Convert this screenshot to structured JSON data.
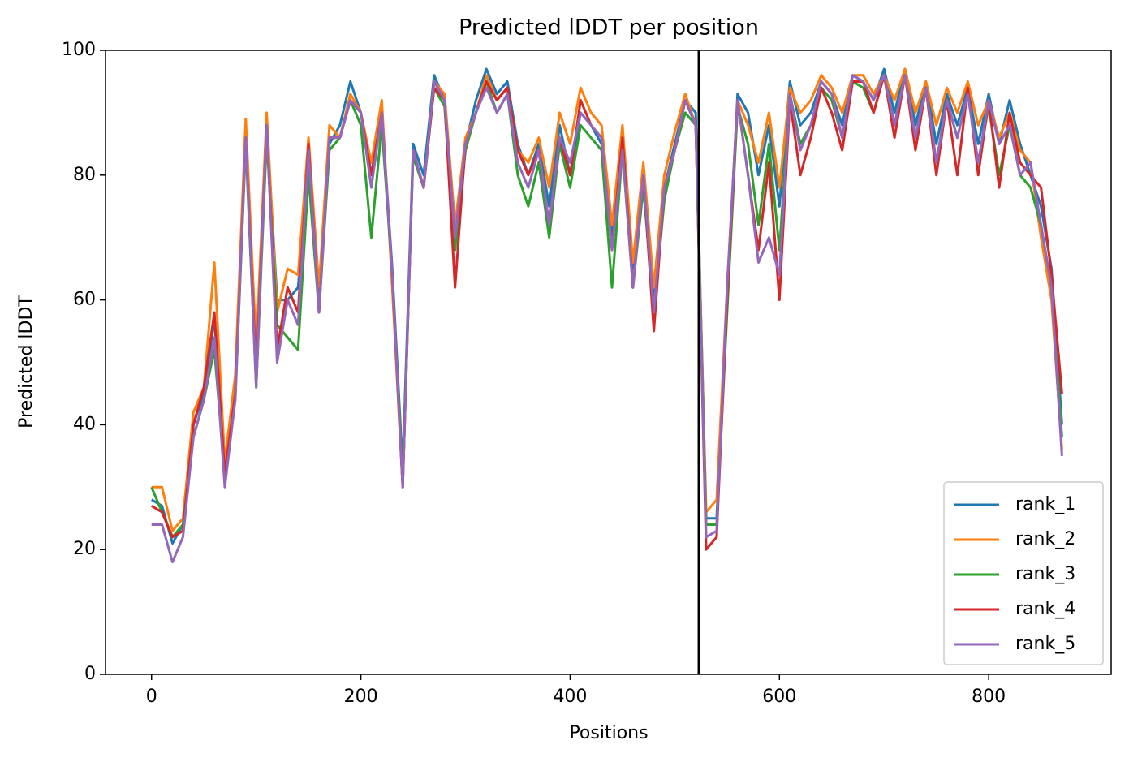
{
  "chart_data": {
    "type": "line",
    "title": "Predicted lDDT per position",
    "xlabel": "Positions",
    "ylabel": "Predicted lDDT",
    "x": [
      0,
      10,
      20,
      30,
      40,
      50,
      60,
      70,
      80,
      90,
      100,
      110,
      120,
      130,
      140,
      150,
      160,
      170,
      180,
      190,
      200,
      210,
      220,
      230,
      240,
      250,
      260,
      270,
      280,
      290,
      300,
      310,
      320,
      330,
      340,
      350,
      360,
      370,
      380,
      390,
      400,
      410,
      420,
      430,
      440,
      450,
      460,
      470,
      480,
      490,
      500,
      510,
      520,
      530,
      540,
      550,
      560,
      570,
      580,
      590,
      600,
      610,
      620,
      630,
      640,
      650,
      660,
      670,
      680,
      690,
      700,
      710,
      720,
      730,
      740,
      750,
      760,
      770,
      780,
      790,
      800,
      810,
      820,
      830,
      840,
      850,
      860,
      870
    ],
    "series": [
      {
        "name": "rank_1",
        "color": "#1f77b4",
        "values": [
          28,
          27,
          21,
          24,
          40,
          45,
          57,
          33,
          45,
          87,
          50,
          88,
          60,
          60,
          62,
          82,
          60,
          85,
          88,
          95,
          90,
          80,
          90,
          65,
          33,
          85,
          80,
          96,
          92,
          70,
          85,
          92,
          97,
          93,
          95,
          85,
          80,
          85,
          75,
          88,
          80,
          90,
          88,
          85,
          70,
          85,
          65,
          80,
          60,
          78,
          85,
          92,
          90,
          25,
          25,
          60,
          93,
          90,
          80,
          88,
          75,
          95,
          88,
          90,
          95,
          93,
          88,
          96,
          95,
          92,
          97,
          90,
          97,
          88,
          95,
          85,
          93,
          88,
          94,
          85,
          93,
          85,
          92,
          85,
          80,
          75,
          65,
          40
        ]
      },
      {
        "name": "rank_2",
        "color": "#ff7f0e",
        "values": [
          30,
          30,
          23,
          25,
          42,
          46,
          66,
          34,
          48,
          89,
          52,
          90,
          58,
          65,
          64,
          86,
          62,
          88,
          86,
          93,
          90,
          82,
          92,
          62,
          30,
          84,
          78,
          95,
          93,
          72,
          86,
          90,
          96,
          92,
          94,
          84,
          82,
          86,
          78,
          90,
          85,
          94,
          90,
          88,
          72,
          88,
          66,
          82,
          62,
          80,
          87,
          93,
          88,
          26,
          28,
          62,
          92,
          88,
          82,
          90,
          78,
          94,
          90,
          92,
          96,
          94,
          90,
          96,
          96,
          93,
          96,
          92,
          97,
          90,
          95,
          88,
          94,
          90,
          95,
          88,
          92,
          86,
          90,
          84,
          82,
          70,
          60,
          36
        ]
      },
      {
        "name": "rank_3",
        "color": "#2ca02c",
        "values": [
          30,
          26,
          22,
          24,
          38,
          44,
          52,
          32,
          44,
          85,
          46,
          86,
          56,
          54,
          52,
          80,
          58,
          84,
          86,
          92,
          88,
          70,
          88,
          64,
          32,
          83,
          78,
          94,
          91,
          68,
          84,
          90,
          95,
          90,
          93,
          80,
          75,
          82,
          70,
          85,
          78,
          88,
          86,
          84,
          62,
          84,
          62,
          78,
          58,
          76,
          84,
          90,
          88,
          24,
          24,
          58,
          91,
          85,
          72,
          85,
          68,
          93,
          85,
          88,
          94,
          92,
          86,
          95,
          94,
          90,
          96,
          88,
          96,
          86,
          94,
          82,
          92,
          86,
          93,
          82,
          91,
          80,
          88,
          80,
          78,
          72,
          62,
          38
        ]
      },
      {
        "name": "rank_4",
        "color": "#d62728",
        "values": [
          27,
          26,
          22,
          23,
          40,
          46,
          58,
          32,
          45,
          86,
          48,
          88,
          52,
          62,
          58,
          85,
          58,
          86,
          86,
          92,
          90,
          80,
          90,
          64,
          30,
          84,
          78,
          94,
          92,
          62,
          85,
          90,
          95,
          92,
          94,
          84,
          80,
          84,
          72,
          86,
          80,
          92,
          88,
          86,
          68,
          86,
          62,
          80,
          55,
          78,
          84,
          92,
          88,
          20,
          22,
          60,
          92,
          80,
          68,
          82,
          60,
          92,
          80,
          86,
          94,
          90,
          84,
          95,
          95,
          90,
          96,
          86,
          96,
          84,
          94,
          80,
          92,
          80,
          94,
          80,
          92,
          78,
          90,
          82,
          80,
          78,
          64,
          45
        ]
      },
      {
        "name": "rank_5",
        "color": "#9467bd",
        "values": [
          24,
          24,
          18,
          22,
          38,
          44,
          54,
          30,
          44,
          86,
          46,
          88,
          50,
          60,
          56,
          84,
          58,
          86,
          86,
          92,
          90,
          78,
          90,
          64,
          30,
          84,
          78,
          95,
          92,
          70,
          85,
          90,
          94,
          90,
          93,
          82,
          78,
          84,
          72,
          86,
          82,
          90,
          88,
          86,
          68,
          84,
          62,
          80,
          58,
          78,
          84,
          92,
          88,
          22,
          23,
          62,
          92,
          80,
          66,
          70,
          64,
          93,
          84,
          88,
          95,
          93,
          86,
          96,
          95,
          92,
          96,
          88,
          96,
          86,
          94,
          82,
          92,
          86,
          93,
          82,
          92,
          85,
          88,
          80,
          82,
          72,
          62,
          35
        ]
      }
    ],
    "vlines": [
      523
    ],
    "vline_color": "#000000",
    "xlim": [
      -44,
      917
    ],
    "ylim": [
      0,
      100
    ],
    "xticks": [
      0,
      200,
      400,
      600,
      800
    ],
    "yticks": [
      0,
      20,
      40,
      60,
      80,
      100
    ],
    "grid": false,
    "legend": "lower right"
  }
}
